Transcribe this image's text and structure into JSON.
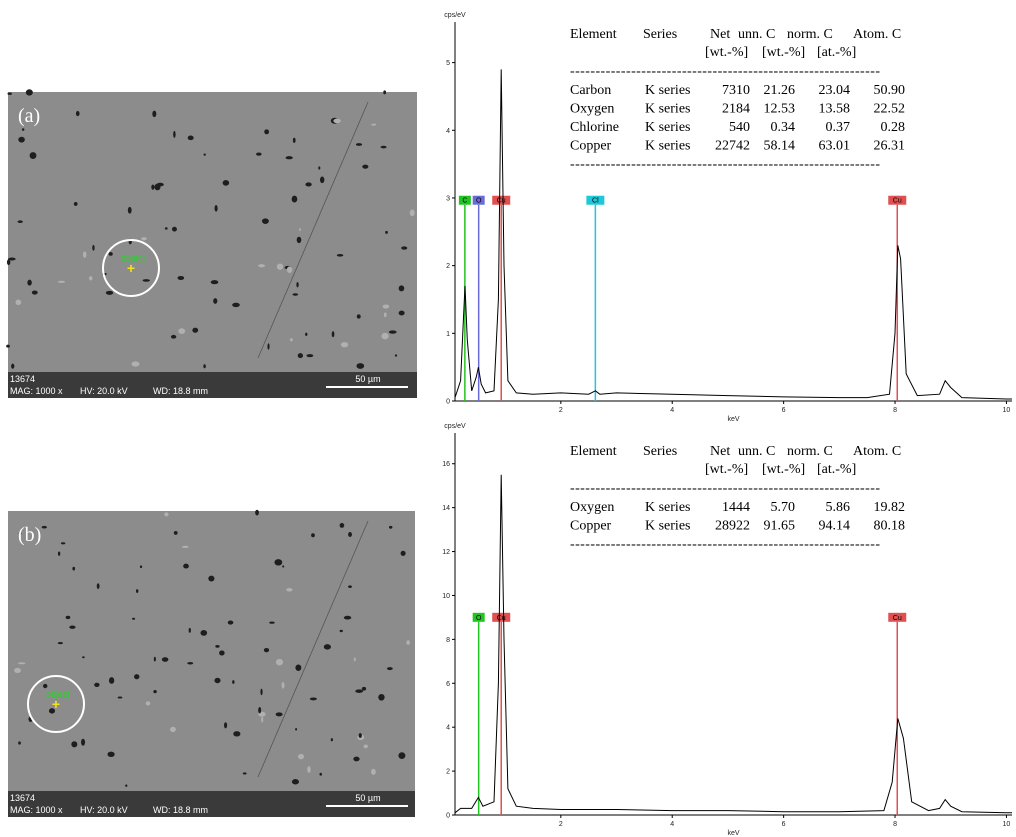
{
  "images": [
    {
      "label": "(a)",
      "object_label": "object",
      "sample_id": "13674",
      "mag": "MAG: 1000 x",
      "hv": "HV: 20.0 kV",
      "wd": "WD: 18.8 mm",
      "scale_bar": "50 µm"
    },
    {
      "label": "(b)",
      "object_label": "object",
      "sample_id": "13674",
      "mag": "MAG: 1000 x",
      "hv": "HV: 20.0 kV",
      "wd": "WD: 18.8 mm",
      "scale_bar": "50 µm"
    }
  ],
  "chart_data": [
    {
      "type": "line",
      "y_label": "cps/eV",
      "x_label": "keV",
      "color": "#000000",
      "xlim": [
        0.1,
        10.1
      ],
      "xticks": [
        2,
        4,
        6,
        8,
        10
      ],
      "ylim": [
        0,
        5.6
      ],
      "yticks": [
        0,
        1,
        2,
        3,
        4,
        5
      ],
      "x": [
        0.1,
        0.2,
        0.25,
        0.28,
        0.32,
        0.4,
        0.48,
        0.52,
        0.57,
        0.65,
        0.8,
        0.88,
        0.93,
        0.98,
        1.05,
        1.2,
        1.5,
        2,
        2.5,
        2.62,
        2.7,
        3,
        4,
        5,
        6,
        7,
        7.5,
        7.9,
        8.0,
        8.05,
        8.1,
        8.2,
        8.4,
        8.8,
        8.9,
        9.0,
        9.2,
        10,
        10.1
      ],
      "values": [
        0.05,
        0.3,
        1.2,
        1.7,
        0.9,
        0.15,
        0.35,
        0.5,
        0.25,
        0.12,
        0.15,
        1.5,
        4.9,
        2.0,
        0.3,
        0.12,
        0.1,
        0.12,
        0.1,
        0.15,
        0.1,
        0.12,
        0.1,
        0.08,
        0.06,
        0.05,
        0.05,
        0.1,
        1.0,
        2.3,
        2.1,
        0.4,
        0.08,
        0.1,
        0.3,
        0.2,
        0.05,
        0.03,
        0.03
      ],
      "markers": [
        {
          "label": "C",
          "x": 0.277,
          "y": 2.9,
          "color": "#22c422"
        },
        {
          "label": "O",
          "x": 0.525,
          "y": 2.9,
          "color": "#6a6ad8"
        },
        {
          "label": "Cu",
          "x": 0.93,
          "y": 2.9,
          "color": "#e05050"
        },
        {
          "label": "Cl",
          "x": 2.62,
          "y": 2.9,
          "color": "#1ec8d8"
        },
        {
          "label": "Cu",
          "x": 8.04,
          "y": 2.9,
          "color": "#e05050"
        }
      ],
      "table": {
        "header": [
          "Element",
          "Series",
          "Net",
          "unn. C",
          "norm. C",
          "Atom. C"
        ],
        "units": [
          "[wt.-%]",
          "[wt.-%]",
          "[at.-%]"
        ],
        "separator": "-------------------------------------------------------------",
        "rows": [
          [
            "Carbon",
            "K series",
            "7310",
            "21.26",
            "23.04",
            "50.90"
          ],
          [
            "Oxygen",
            "K series",
            "2184",
            "12.53",
            "13.58",
            "22.52"
          ],
          [
            "Chlorine",
            "K series",
            "540",
            "0.34",
            "0.37",
            "0.28"
          ],
          [
            "Copper",
            "K series",
            "22742",
            "58.14",
            "63.01",
            "26.31"
          ]
        ]
      }
    },
    {
      "type": "line",
      "y_label": "cps/eV",
      "x_label": "keV",
      "color": "#000000",
      "xlim": [
        0.1,
        10.1
      ],
      "xticks": [
        2,
        4,
        6,
        8,
        10
      ],
      "ylim": [
        0,
        17.4
      ],
      "yticks": [
        0,
        2,
        4,
        6,
        8,
        10,
        12,
        14,
        16
      ],
      "x": [
        0.1,
        0.2,
        0.4,
        0.52,
        0.6,
        0.8,
        0.88,
        0.93,
        0.98,
        1.05,
        1.2,
        1.5,
        2,
        3,
        4,
        5,
        6,
        7,
        7.8,
        7.95,
        8.05,
        8.15,
        8.3,
        8.6,
        8.8,
        8.9,
        9.0,
        9.2,
        10,
        10.1
      ],
      "values": [
        0.1,
        0.3,
        0.3,
        0.8,
        0.4,
        0.6,
        6,
        15.5,
        8,
        1.2,
        0.4,
        0.3,
        0.25,
        0.25,
        0.2,
        0.2,
        0.15,
        0.15,
        0.2,
        1.5,
        4.4,
        3.5,
        0.6,
        0.2,
        0.3,
        0.7,
        0.4,
        0.15,
        0.1,
        0.1
      ],
      "markers": [
        {
          "label": "O",
          "x": 0.525,
          "y": 8.8,
          "color": "#22c422"
        },
        {
          "label": "Cu",
          "x": 0.93,
          "y": 8.8,
          "color": "#e05050"
        },
        {
          "label": "Cu",
          "x": 8.04,
          "y": 8.8,
          "color": "#e05050"
        }
      ],
      "table": {
        "header": [
          "Element",
          "Series",
          "Net",
          "unn. C",
          "norm. C",
          "Atom. C"
        ],
        "units": [
          "[wt.-%]",
          "[wt.-%]",
          "[at.-%]"
        ],
        "separator": "-------------------------------------------------------------",
        "rows": [
          [
            "Oxygen",
            "K series",
            "1444",
            "5.70",
            "5.86",
            "19.82"
          ],
          [
            "Copper",
            "K series",
            "28922",
            "91.65",
            "94.14",
            "80.18"
          ]
        ]
      }
    }
  ]
}
